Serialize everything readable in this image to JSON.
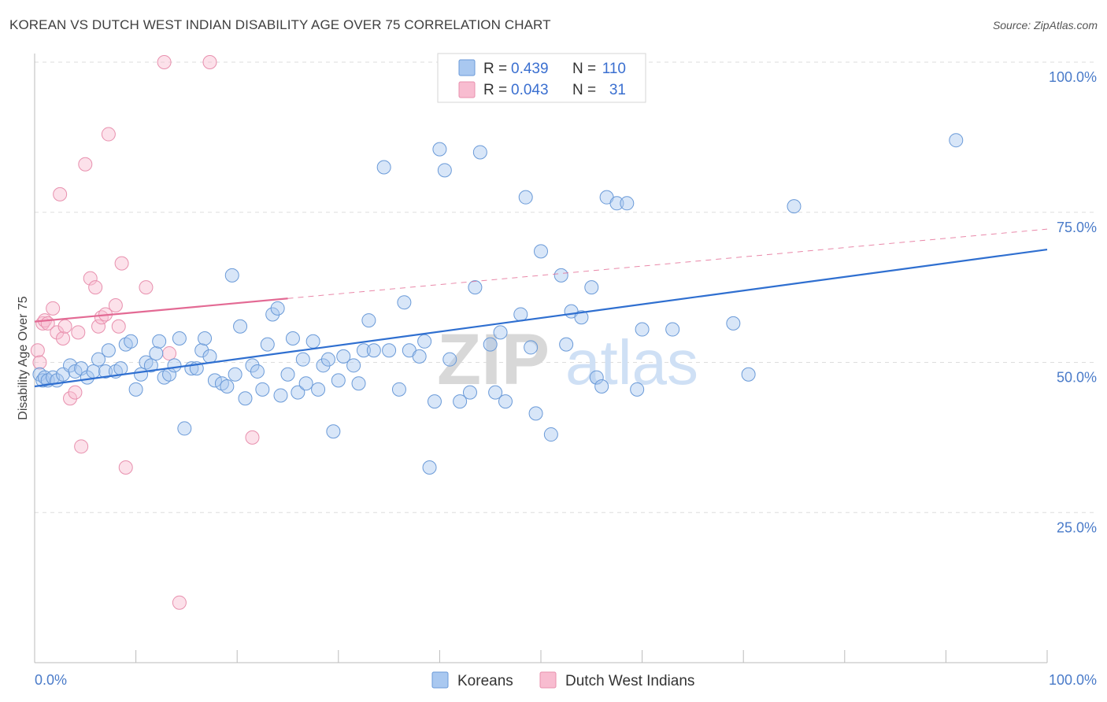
{
  "title": "KOREAN VS DUTCH WEST INDIAN DISABILITY AGE OVER 75 CORRELATION CHART",
  "source": "Source: ZipAtlas.com",
  "watermark": {
    "zip": "ZIP",
    "atlas": "atlas"
  },
  "colors": {
    "blue_fill": "#a9c8f0",
    "blue_stroke": "#6a9ad8",
    "blue_line": "#2f6fd0",
    "pink_fill": "#f8bcd0",
    "pink_stroke": "#e890ae",
    "pink_line": "#e36a94",
    "grid": "#dddddd",
    "axis_text": "#4a7bc9"
  },
  "legend": {
    "rows": [
      {
        "r_label": "R =",
        "r_value": "0.439",
        "n_label": "N =",
        "n_value": "110"
      },
      {
        "r_label": "R =",
        "r_value": "0.043",
        "n_label": "N =",
        "n_value": "31"
      }
    ]
  },
  "chart_data": {
    "type": "scatter",
    "title": "KOREAN VS DUTCH WEST INDIAN DISABILITY AGE OVER 75 CORRELATION CHART",
    "xlabel": "",
    "ylabel": "Disability Age Over 75",
    "xlim": [
      0,
      100
    ],
    "ylim": [
      0,
      100
    ],
    "x_tick_labels": [
      "0.0%",
      "100.0%"
    ],
    "y_ticks": [
      {
        "value": 100,
        "label": "100.0%"
      },
      {
        "value": 75,
        "label": "75.0%"
      },
      {
        "value": 50,
        "label": "50.0%"
      },
      {
        "value": 25,
        "label": "25.0%"
      }
    ],
    "grid": true,
    "legend_placement": "top-center",
    "series": [
      {
        "name": "Koreans",
        "color": "#a9c8f0",
        "trend": {
          "x0": 0,
          "y0": 46.0,
          "x1": 100,
          "y1": 68.8,
          "dashed_from": null
        },
        "points": [
          [
            0.5,
            48
          ],
          [
            0.8,
            47
          ],
          [
            1.0,
            47.5
          ],
          [
            1.3,
            47
          ],
          [
            1.8,
            47.5
          ],
          [
            2.2,
            47
          ],
          [
            2.8,
            48
          ],
          [
            3.5,
            49.5
          ],
          [
            4.0,
            48.5
          ],
          [
            4.6,
            49
          ],
          [
            5.2,
            47.5
          ],
          [
            5.8,
            48.5
          ],
          [
            6.3,
            50.5
          ],
          [
            7.0,
            48.5
          ],
          [
            7.3,
            52
          ],
          [
            8.0,
            48.5
          ],
          [
            8.5,
            49
          ],
          [
            9.0,
            53
          ],
          [
            9.5,
            53.5
          ],
          [
            10.0,
            45.5
          ],
          [
            10.5,
            48
          ],
          [
            11.0,
            50
          ],
          [
            11.5,
            49.5
          ],
          [
            12.0,
            51.5
          ],
          [
            12.3,
            53.5
          ],
          [
            12.8,
            47.5
          ],
          [
            13.3,
            48
          ],
          [
            13.8,
            49.5
          ],
          [
            14.3,
            54
          ],
          [
            14.8,
            39
          ],
          [
            15.5,
            49
          ],
          [
            16.0,
            49
          ],
          [
            16.5,
            52
          ],
          [
            16.8,
            54
          ],
          [
            17.3,
            51
          ],
          [
            17.8,
            47
          ],
          [
            18.5,
            46.5
          ],
          [
            19.0,
            46
          ],
          [
            19.5,
            64.5
          ],
          [
            19.8,
            48
          ],
          [
            20.3,
            56
          ],
          [
            20.8,
            44
          ],
          [
            21.5,
            49.5
          ],
          [
            22.0,
            48.5
          ],
          [
            22.5,
            45.5
          ],
          [
            23.0,
            53
          ],
          [
            23.5,
            58
          ],
          [
            24.0,
            59
          ],
          [
            24.3,
            44.5
          ],
          [
            25.0,
            48
          ],
          [
            25.5,
            54
          ],
          [
            26.0,
            45
          ],
          [
            26.5,
            50.5
          ],
          [
            26.8,
            46.5
          ],
          [
            27.5,
            53.5
          ],
          [
            28.0,
            45.5
          ],
          [
            28.5,
            49.5
          ],
          [
            29.0,
            50.5
          ],
          [
            29.5,
            38.5
          ],
          [
            30.0,
            47
          ],
          [
            30.5,
            51
          ],
          [
            31.5,
            49.5
          ],
          [
            32.0,
            46.5
          ],
          [
            32.5,
            52
          ],
          [
            33.0,
            57
          ],
          [
            33.5,
            52
          ],
          [
            34.5,
            82.5
          ],
          [
            35.0,
            52
          ],
          [
            36.0,
            45.5
          ],
          [
            36.5,
            60
          ],
          [
            37.0,
            52
          ],
          [
            38.0,
            51
          ],
          [
            38.5,
            53.5
          ],
          [
            39.0,
            32.5
          ],
          [
            39.5,
            43.5
          ],
          [
            40.0,
            85.5
          ],
          [
            40.5,
            82
          ],
          [
            41.0,
            50.5
          ],
          [
            42.0,
            43.5
          ],
          [
            43.0,
            45
          ],
          [
            43.5,
            62.5
          ],
          [
            44.0,
            85
          ],
          [
            45.0,
            53
          ],
          [
            45.5,
            45
          ],
          [
            46.0,
            55
          ],
          [
            46.5,
            43.5
          ],
          [
            48.0,
            58
          ],
          [
            48.5,
            77.5
          ],
          [
            49.0,
            52.5
          ],
          [
            49.5,
            41.5
          ],
          [
            50.0,
            68.5
          ],
          [
            51.0,
            38
          ],
          [
            52.0,
            64.5
          ],
          [
            52.5,
            53
          ],
          [
            53.0,
            58.5
          ],
          [
            54.0,
            57.5
          ],
          [
            55.0,
            62.5
          ],
          [
            55.5,
            47.5
          ],
          [
            56.0,
            46
          ],
          [
            56.5,
            77.5
          ],
          [
            57.5,
            76.5
          ],
          [
            58.5,
            76.5
          ],
          [
            59.5,
            45.5
          ],
          [
            60.0,
            55.5
          ],
          [
            63.0,
            55.5
          ],
          [
            69.0,
            56.5
          ],
          [
            70.5,
            48
          ],
          [
            75.0,
            76
          ],
          [
            91.0,
            87
          ]
        ]
      },
      {
        "name": "Dutch West Indians",
        "color": "#f8bcd0",
        "trend": {
          "x0": 0,
          "y0": 56.8,
          "x1": 100,
          "y1": 72.2,
          "dashed_from": 25
        },
        "points": [
          [
            0.3,
            52
          ],
          [
            0.5,
            50
          ],
          [
            0.8,
            56.5
          ],
          [
            1.0,
            57
          ],
          [
            1.3,
            56.5
          ],
          [
            1.8,
            59
          ],
          [
            2.2,
            55
          ],
          [
            2.5,
            78
          ],
          [
            2.8,
            54
          ],
          [
            3.0,
            56
          ],
          [
            3.5,
            44
          ],
          [
            4.0,
            45
          ],
          [
            4.3,
            55
          ],
          [
            4.6,
            36
          ],
          [
            5.0,
            83
          ],
          [
            5.5,
            64
          ],
          [
            6.0,
            62.5
          ],
          [
            6.3,
            56
          ],
          [
            6.6,
            57.5
          ],
          [
            7.0,
            58
          ],
          [
            7.3,
            88
          ],
          [
            8.0,
            59.5
          ],
          [
            8.3,
            56
          ],
          [
            8.6,
            66.5
          ],
          [
            9.0,
            32.5
          ],
          [
            11.0,
            62.5
          ],
          [
            12.8,
            100
          ],
          [
            13.3,
            51.5
          ],
          [
            14.3,
            10
          ],
          [
            17.3,
            100
          ],
          [
            21.5,
            37.5
          ]
        ]
      }
    ]
  },
  "bottom_legend": [
    {
      "label": "Koreans"
    },
    {
      "label": "Dutch West Indians"
    }
  ]
}
